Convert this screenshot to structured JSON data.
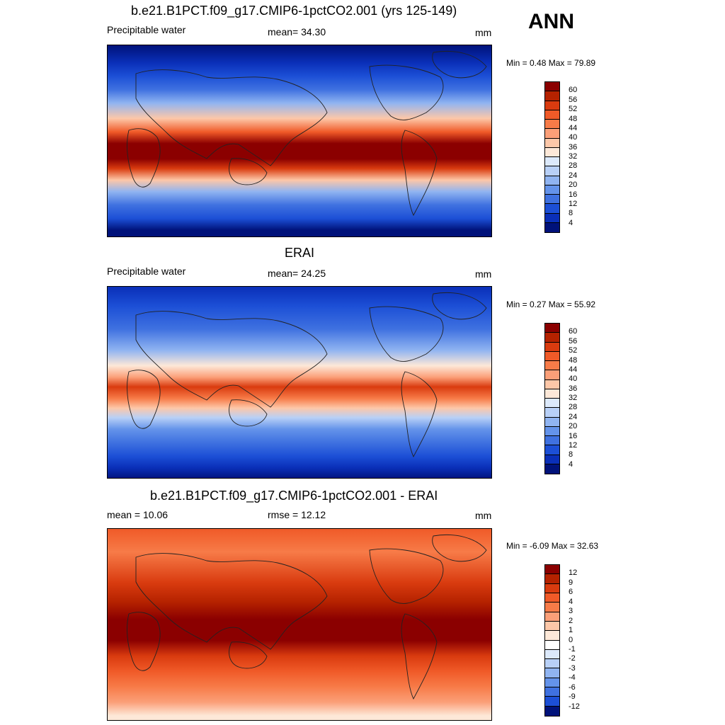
{
  "annual_label": "ANN",
  "panels": [
    {
      "title": "b.e21.B1PCT.f09_g17.CMIP6-1pctCO2.001 (yrs 125-149)",
      "left_label": "Precipitable water",
      "center_label": "mean=  34.30",
      "units": "mm",
      "minmax": "Min =   0.48 Max =  79.89",
      "colorbar_labels": [
        "60",
        "56",
        "52",
        "48",
        "44",
        "40",
        "36",
        "32",
        "28",
        "24",
        "20",
        "16",
        "12",
        "8",
        "4"
      ],
      "colorbar_colors": [
        "#8b0000",
        "#b52200",
        "#d93b0f",
        "#f05a28",
        "#f77b48",
        "#fb9f78",
        "#fdc7a8",
        "#fde8d8",
        "#dce9fb",
        "#b8d0f7",
        "#90b4f1",
        "#6493ea",
        "#3f71e0",
        "#1c4fd6",
        "#0a2fb8",
        "#00127a"
      ],
      "map_field": "model_pw"
    },
    {
      "title": "ERAI",
      "left_label": "Precipitable water",
      "center_label": "mean=  24.25",
      "units": "mm",
      "minmax": "Min =   0.27 Max =  55.92",
      "colorbar_labels": [
        "60",
        "56",
        "52",
        "48",
        "44",
        "40",
        "36",
        "32",
        "28",
        "24",
        "20",
        "16",
        "12",
        "8",
        "4"
      ],
      "colorbar_colors": [
        "#8b0000",
        "#b52200",
        "#d93b0f",
        "#f05a28",
        "#f77b48",
        "#fb9f78",
        "#fdc7a8",
        "#fde8d8",
        "#dce9fb",
        "#b8d0f7",
        "#90b4f1",
        "#6493ea",
        "#3f71e0",
        "#1c4fd6",
        "#0a2fb8",
        "#00127a"
      ],
      "map_field": "obs_pw"
    },
    {
      "title": "b.e21.B1PCT.f09_g17.CMIP6-1pctCO2.001 - ERAI",
      "left_label": "mean =  10.06",
      "center_label": "rmse =  12.12",
      "units": "mm",
      "minmax": "Min =  -6.09 Max =  32.63",
      "colorbar_labels": [
        "12",
        "9",
        "6",
        "4",
        "3",
        "2",
        "1",
        "0",
        "-1",
        "-2",
        "-3",
        "-4",
        "-6",
        "-9",
        "-12"
      ],
      "colorbar_colors": [
        "#8b0000",
        "#b52200",
        "#d93b0f",
        "#f05a28",
        "#f77b48",
        "#fb9f78",
        "#fdc7a8",
        "#fde8d8",
        "#ffffff",
        "#dce9fb",
        "#b8d0f7",
        "#90b4f1",
        "#6493ea",
        "#3f71e0",
        "#1c4fd6",
        "#00127a"
      ],
      "map_field": "diff_pw"
    }
  ]
}
